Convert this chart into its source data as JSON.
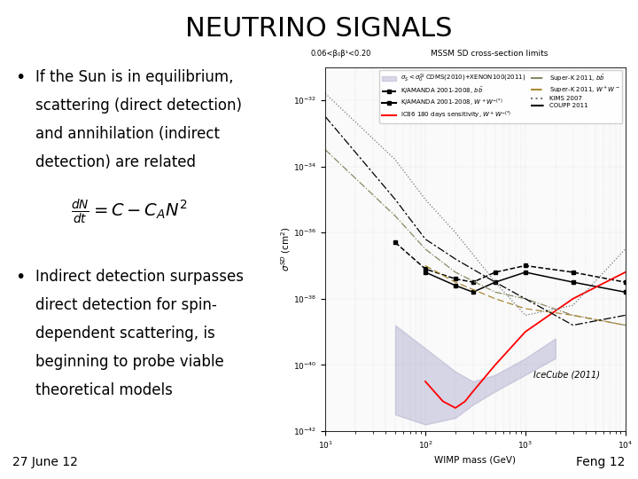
{
  "title": "NEUTRINO SIGNALS",
  "title_fontsize": 22,
  "bg_color": "#ffffff",
  "bullet1_lines": [
    "If the Sun is in equilibrium,",
    "scattering (direct detection)",
    "and annihilation (indirect",
    "detection) are related"
  ],
  "formula": "$\\frac{dN}{dt} = C - C_A N^2$",
  "bullet2_lines": [
    "Indirect detection surpasses",
    "direct detection for spin-",
    "dependent scattering, is",
    "beginning to probe viable",
    "theoretical models"
  ],
  "footer_left": "27 June 12",
  "footer_right": "Feng 12",
  "footer_fontsize": 10,
  "bullet_fontsize": 12,
  "formula_fontsize": 14,
  "plot_ylabel": "$\\sigma^{SD}$ (cm$^2$)",
  "plot_xlabel": "WIMP mass (GeV)",
  "icecube_label": "IceCube (2011)",
  "filled_region_color": "#aaaacc",
  "filled_region_alpha": 0.45,
  "plot_annotation_top": "0.06<β0β1 <0.20       MSSM SD cross-section limits"
}
